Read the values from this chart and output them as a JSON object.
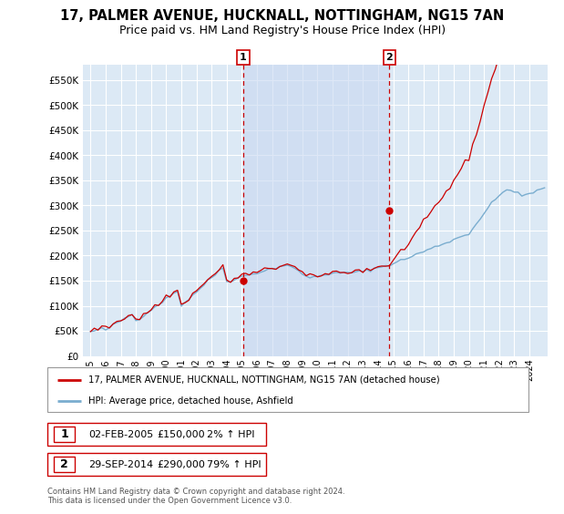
{
  "title": "17, PALMER AVENUE, HUCKNALL, NOTTINGHAM, NG15 7AN",
  "subtitle": "Price paid vs. HM Land Registry's House Price Index (HPI)",
  "title_fontsize": 10.5,
  "subtitle_fontsize": 9,
  "background_color": "#ffffff",
  "plot_bg_color": "#dce9f5",
  "grid_color": "#ffffff",
  "legend_label_red": "17, PALMER AVENUE, HUCKNALL, NOTTINGHAM, NG15 7AN (detached house)",
  "legend_label_blue": "HPI: Average price, detached house, Ashfield",
  "footnote": "Contains HM Land Registry data © Crown copyright and database right 2024.\nThis data is licensed under the Open Government Licence v3.0.",
  "transaction1_date": "02-FEB-2005",
  "transaction1_price": "£150,000",
  "transaction1_hpi": "2% ↑ HPI",
  "transaction1_x": 2005.09,
  "transaction1_y": 150000,
  "transaction2_date": "29-SEP-2014",
  "transaction2_price": "£290,000",
  "transaction2_hpi": "79% ↑ HPI",
  "transaction2_x": 2014.75,
  "transaction2_y": 290000,
  "ylim": [
    0,
    580000
  ],
  "yticks": [
    0,
    50000,
    100000,
    150000,
    200000,
    250000,
    300000,
    350000,
    400000,
    450000,
    500000,
    550000
  ],
  "ytick_labels": [
    "£0",
    "£50K",
    "£100K",
    "£150K",
    "£200K",
    "£250K",
    "£300K",
    "£350K",
    "£400K",
    "£450K",
    "£500K",
    "£550K"
  ],
  "xlim": [
    1994.5,
    2025.2
  ],
  "xtick_years": [
    1995,
    1996,
    1997,
    1998,
    1999,
    2000,
    2001,
    2002,
    2003,
    2004,
    2005,
    2006,
    2007,
    2008,
    2009,
    2010,
    2011,
    2012,
    2013,
    2014,
    2015,
    2016,
    2017,
    2018,
    2019,
    2020,
    2021,
    2022,
    2023,
    2024
  ],
  "red_color": "#cc0000",
  "blue_color": "#7aadcf",
  "vline_color": "#cc0000",
  "highlight_color": "#c8d8f0",
  "vline1_x": 2005.09,
  "vline2_x": 2014.75
}
